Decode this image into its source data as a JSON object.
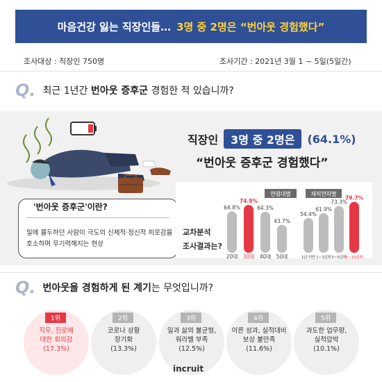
{
  "header": {
    "title_white": "마음건강 잃는 직장인들…",
    "title_yellow": "3명 중 2명은 “번아웃 경험했다”"
  },
  "survey": {
    "target": "조사대상 : 직장인 750명",
    "period": "조사기간 : 2021년 3월 1 ~ 5일(5일간)"
  },
  "q1": {
    "mark": "Q.",
    "pre": "최근 1년간 ",
    "bold": "번아웃 증후군",
    "post": " 경험한 적 있습니까?"
  },
  "result": {
    "line1_a": "직장인",
    "line1_pill": "3명 중 2명은",
    "line1_pct": "(64.1%)",
    "line2": "“번아웃 증후군 경험했다”"
  },
  "definition": {
    "title": "'번아웃 증후군'이란?",
    "desc": "일에 몰두하던 사람이 극도의 신체적·정신적 피로감을 호소하며 무기력해지는 현상"
  },
  "cross_label": [
    "교차분석",
    "조사결과는?"
  ],
  "chart_data": [
    {
      "type": "bar",
      "legend": "연령대별",
      "categories": [
        "20대",
        "30대",
        "40대",
        "50대"
      ],
      "values": [
        64.8,
        74.9,
        64.3,
        43.7
      ],
      "labels": [
        "64.8%",
        "74.9%",
        "64.3%",
        "43.7%"
      ],
      "highlight": 1,
      "ylim": [
        0,
        100
      ]
    },
    {
      "type": "bar",
      "legend": "재직연차별",
      "categories": [
        "1년 미만",
        "1~3년차",
        "3~5년차",
        "5~10년차"
      ],
      "values": [
        54.4,
        61.9,
        73.3,
        79.7
      ],
      "labels": [
        "54.4%",
        "61.9%",
        "73.3%",
        "79.7%"
      ],
      "highlight": 3,
      "ylim": [
        0,
        100
      ]
    }
  ],
  "q2": {
    "mark": "Q.",
    "bold": "번아웃을 경험하게 된 계기",
    "post": "는 무엇입니까?"
  },
  "reasons": [
    {
      "rank": "1위",
      "lines": [
        "직무, 진로에",
        "대한 회의감",
        "(17.3%)"
      ]
    },
    {
      "rank": "2위",
      "lines": [
        "코로나 상황",
        "장기화",
        "(13.3%)"
      ]
    },
    {
      "rank": "3위",
      "lines": [
        "일과 삶의 불균형,",
        "워라밸 부족",
        "(12.5%)"
      ]
    },
    {
      "rank": "4위",
      "lines": [
        "이른 성과, 실적대비",
        "보상 불만족",
        "(11.6%)"
      ]
    },
    {
      "rank": "5위",
      "lines": [
        "과도한 업무량,",
        "실적압박",
        "(10.1%)"
      ]
    }
  ],
  "logo": "incruit",
  "colors": {
    "navy": "#2f4f97",
    "yellow": "#ffd33a",
    "red": "#e53945",
    "bar_gray": "#bdbdbd"
  }
}
